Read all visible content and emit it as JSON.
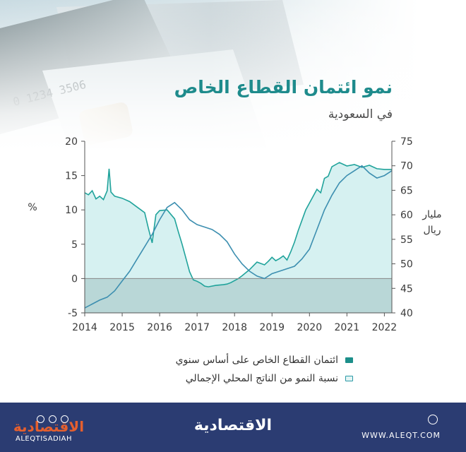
{
  "header": {
    "title": "نمو ائتمان القطاع الخاص",
    "subtitle": "في السعودية"
  },
  "chart_data": {
    "type": "area",
    "x_ticks": [
      "2014",
      "2015",
      "2016",
      "2017",
      "2018",
      "2019",
      "2020",
      "2021",
      "2022"
    ],
    "left_axis": {
      "unit": "%",
      "range": [
        -5,
        20
      ],
      "ticks": [
        -5,
        0,
        5,
        10,
        15,
        20
      ]
    },
    "right_axis": {
      "unit": "مليار ريال",
      "range": [
        40,
        75
      ],
      "ticks": [
        40,
        45,
        50,
        55,
        60,
        65,
        70,
        75
      ]
    },
    "series": [
      {
        "name": "ائتمان القطاع الخاص على أساس سنوي",
        "style": "filled-area",
        "axis": "left",
        "x": [
          2014.0,
          2014.1,
          2014.2,
          2014.3,
          2014.4,
          2014.5,
          2014.6,
          2014.65,
          2014.7,
          2014.8,
          2015.0,
          2015.2,
          2015.4,
          2015.6,
          2015.7,
          2015.8,
          2015.9,
          2016.0,
          2016.2,
          2016.4,
          2016.5,
          2016.6,
          2016.7,
          2016.8,
          2016.9,
          2017.0,
          2017.1,
          2017.2,
          2017.3,
          2017.5,
          2017.7,
          2017.8,
          2017.9,
          2018.0,
          2018.1,
          2018.2,
          2018.4,
          2018.6,
          2018.8,
          2018.9,
          2019.0,
          2019.1,
          2019.2,
          2019.3,
          2019.4,
          2019.5,
          2019.6,
          2019.7,
          2019.8,
          2019.9,
          2020.0,
          2020.1,
          2020.2,
          2020.3,
          2020.4,
          2020.5,
          2020.6,
          2020.8,
          2021.0,
          2021.2,
          2021.4,
          2021.6,
          2021.8,
          2022.0,
          2022.2
        ],
        "values": [
          12.5,
          12.2,
          12.8,
          11.6,
          12.0,
          11.5,
          12.8,
          16.0,
          12.6,
          12.0,
          11.7,
          11.2,
          10.4,
          9.6,
          7.3,
          5.2,
          9.3,
          9.9,
          10.0,
          8.7,
          6.8,
          5.0,
          3.0,
          1.0,
          -0.2,
          -0.4,
          -0.7,
          -1.1,
          -1.2,
          -1.0,
          -0.9,
          -0.8,
          -0.6,
          -0.3,
          0.0,
          0.4,
          1.3,
          2.4,
          2.0,
          2.5,
          3.1,
          2.6,
          2.9,
          3.3,
          2.7,
          3.9,
          5.3,
          7.0,
          8.5,
          10.0,
          11.0,
          12.0,
          13.0,
          12.5,
          14.6,
          14.9,
          16.3,
          16.9,
          16.4,
          16.6,
          16.2,
          16.5,
          16.0,
          15.9,
          15.9
        ]
      },
      {
        "name": "نسبة النمو من الناتج المحلي الإجمالي",
        "style": "line",
        "axis": "right",
        "x": [
          2014.0,
          2014.2,
          2014.4,
          2014.6,
          2014.8,
          2015.0,
          2015.2,
          2015.4,
          2015.6,
          2015.8,
          2016.0,
          2016.2,
          2016.4,
          2016.6,
          2016.8,
          2017.0,
          2017.2,
          2017.4,
          2017.6,
          2017.8,
          2018.0,
          2018.2,
          2018.4,
          2018.6,
          2018.8,
          2019.0,
          2019.2,
          2019.4,
          2019.6,
          2019.8,
          2020.0,
          2020.2,
          2020.4,
          2020.6,
          2020.8,
          2021.0,
          2021.2,
          2021.4,
          2021.6,
          2021.8,
          2022.0,
          2022.2
        ],
        "values": [
          41.0,
          41.8,
          42.6,
          43.2,
          44.5,
          46.5,
          48.5,
          51.0,
          53.5,
          56.0,
          59.0,
          61.5,
          62.5,
          61.0,
          59.0,
          58.0,
          57.5,
          57.0,
          56.0,
          54.5,
          52.0,
          50.0,
          48.5,
          47.5,
          47.0,
          48.0,
          48.5,
          49.0,
          49.5,
          51.0,
          53.0,
          57.0,
          61.0,
          64.0,
          66.5,
          68.0,
          69.0,
          70.0,
          68.5,
          67.5,
          68.0,
          69.0
        ]
      }
    ],
    "colors": {
      "area_fill": "#cfeeee",
      "area_stroke": "#20a39b",
      "negative_band": "#b9d7d7",
      "line_stroke": "#3d8fb0",
      "title": "#1e8b8c"
    },
    "legend_position": "bottom"
  },
  "legend": [
    {
      "label": "ائتمان القطاع الخاص على أساس سنوي",
      "marker": "filled"
    },
    {
      "label": "نسبة النمو من الناتج المحلي الإجمالي",
      "marker": "outline"
    }
  ],
  "footer": {
    "brand": "الاقتصادية",
    "url": "WWW.ALEQT.COM",
    "logo_text": "الاقتصادية",
    "handle": "ALEQTISADIAH"
  }
}
